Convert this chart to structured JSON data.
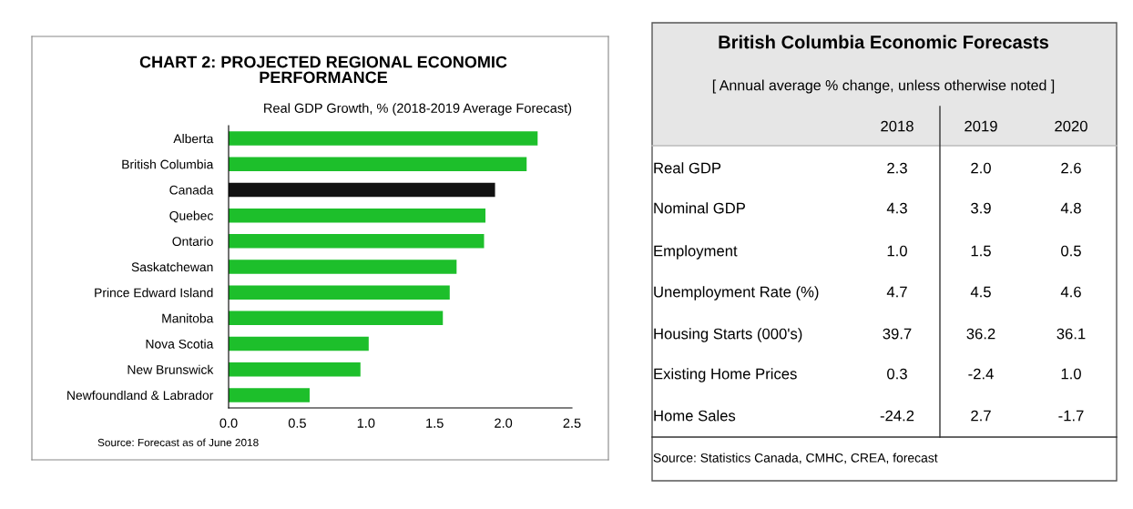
{
  "chart_data": [
    {
      "type": "bar",
      "orientation": "horizontal",
      "title": "CHART 2: PROJECTED REGIONAL ECONOMIC\nPERFORMANCE",
      "subtitle": "Real GDP Growth, % (2018-2019 Average Forecast)",
      "categories": [
        "Alberta",
        "British Columbia",
        "Canada",
        "Quebec",
        "Ontario",
        "Saskatchewan",
        "Prince Edward Island",
        "Manitoba",
        "Nova Scotia",
        "New Brunswick",
        "Newfoundland & Labrador"
      ],
      "values": [
        2.25,
        2.17,
        1.94,
        1.87,
        1.86,
        1.66,
        1.61,
        1.56,
        1.02,
        0.96,
        0.59
      ],
      "colors": [
        "#1dbf2b",
        "#1dbf2b",
        "#111111",
        "#1dbf2b",
        "#1dbf2b",
        "#1dbf2b",
        "#1dbf2b",
        "#1dbf2b",
        "#1dbf2b",
        "#1dbf2b",
        "#1dbf2b"
      ],
      "xlim": [
        0,
        2.5
      ],
      "xticks": [
        {
          "value": 0,
          "label": "0.0"
        },
        {
          "value": 0.5,
          "label": "0.5"
        },
        {
          "value": 1,
          "label": "1.0"
        },
        {
          "value": 1.5,
          "label": "1.5"
        },
        {
          "value": 2,
          "label": "2.0"
        },
        {
          "value": 2.5,
          "label": "2.5"
        }
      ],
      "grid": false,
      "legend": false,
      "annotations": [
        "Source: Forecast as of June 2018"
      ]
    },
    {
      "type": "other",
      "title": "British Columbia Economic Forecasts",
      "subtitle": "[ Annual average % change, unless otherwise noted ]",
      "categories": [
        "Real GDP",
        "Nominal GDP",
        "Employment",
        "Unemployment Rate (%)",
        "Housing Starts (000's)",
        "Existing Home Prices",
        "Home Sales"
      ],
      "series": [
        {
          "name": "2018",
          "values": [
            2.3,
            4.3,
            1.0,
            4.7,
            39.7,
            0.3,
            -24.2
          ],
          "value_labels": [
            "2.3",
            "4.3",
            "1.0",
            "4.7",
            "39.7",
            "0.3",
            "-24.2"
          ]
        },
        {
          "name": "2019",
          "values": [
            2.0,
            3.9,
            1.5,
            4.5,
            36.2,
            -2.4,
            2.7
          ],
          "value_labels": [
            "2.0",
            "3.9",
            "1.5",
            "4.5",
            "36.2",
            "-2.4",
            "2.7"
          ]
        },
        {
          "name": "2020",
          "values": [
            2.6,
            4.8,
            0.5,
            4.6,
            36.1,
            1.0,
            -1.7
          ],
          "value_labels": [
            "2.6",
            "4.8",
            "0.5",
            "4.6",
            "36.1",
            "1.0",
            "-1.7"
          ]
        }
      ],
      "annotations": [
        "Source: Statistics Canada, CMHC, CREA, forecast"
      ]
    }
  ]
}
